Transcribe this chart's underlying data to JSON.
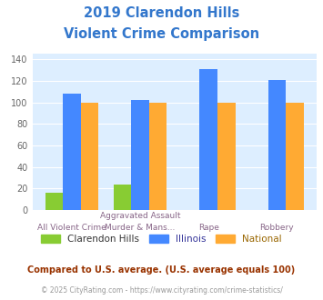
{
  "title_line1": "2019 Clarendon Hills",
  "title_line2": "Violent Crime Comparison",
  "clarendon_hills": [
    16,
    24,
    0,
    0
  ],
  "illinois": [
    108,
    102,
    131,
    121
  ],
  "national": [
    100,
    100,
    100,
    100
  ],
  "bar_colors": {
    "clarendon": "#88cc33",
    "illinois": "#4488ff",
    "national": "#ffaa33"
  },
  "ylim": [
    0,
    145
  ],
  "yticks": [
    0,
    20,
    40,
    60,
    80,
    100,
    120,
    140
  ],
  "top_labels": [
    "",
    "Aggravated Assault",
    "",
    ""
  ],
  "bottom_labels": [
    "All Violent Crime",
    "Murder & Mans...",
    "Rape",
    "Robbery"
  ],
  "legend_labels": [
    "Clarendon Hills",
    "Illinois",
    "National"
  ],
  "footnote1": "Compared to U.S. average. (U.S. average equals 100)",
  "footnote2": "© 2025 CityRating.com - https://www.cityrating.com/crime-statistics/",
  "title_color": "#3377cc",
  "footnote1_color": "#993300",
  "footnote2_color": "#999999",
  "fig_bg": "#ffffff",
  "plot_bg": "#ddeeff"
}
